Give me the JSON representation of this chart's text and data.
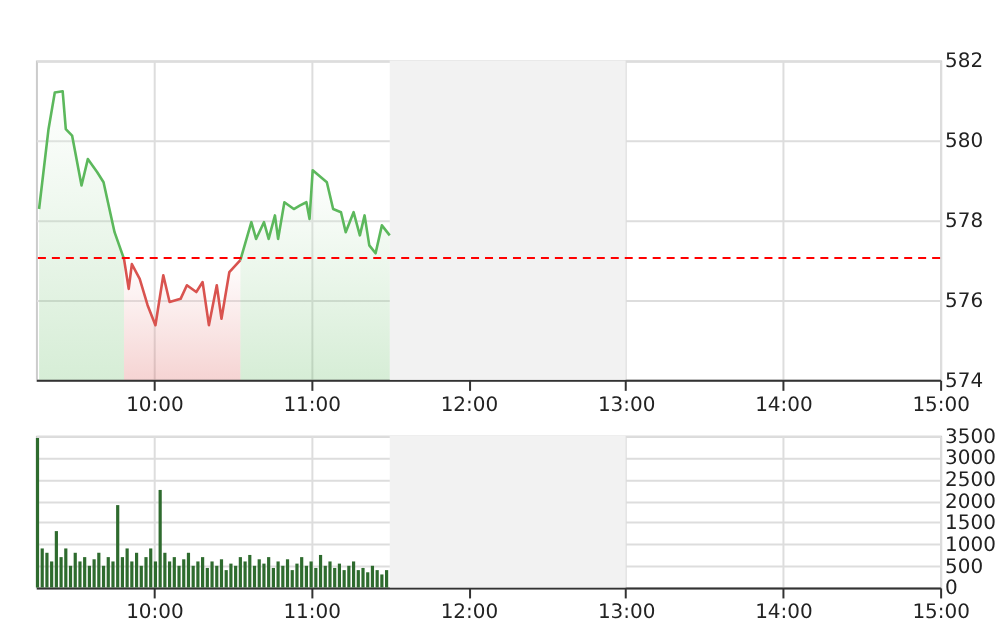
{
  "chart_data": [
    {
      "type": "area",
      "xlim": [
        9.25,
        15
      ],
      "xticks": [
        {
          "value": 10,
          "label": "10:00"
        },
        {
          "value": 11,
          "label": "11:00"
        },
        {
          "value": 12,
          "label": "12:00"
        },
        {
          "value": 13,
          "label": "13:00"
        },
        {
          "value": 14,
          "label": "14:00"
        },
        {
          "value": 15,
          "label": "15:00"
        }
      ],
      "ylim": [
        574,
        582
      ],
      "yticks": [
        574,
        576,
        578,
        580,
        582
      ],
      "grid": true,
      "series": [
        {
          "type": "area",
          "color": "#5cb85c",
          "x": [
            9.27,
            9.33,
            9.37,
            9.42,
            9.44,
            9.48,
            9.54,
            9.58,
            9.64,
            9.68,
            9.75,
            9.81
          ],
          "values": [
            578.28,
            580.28,
            581.2,
            581.23,
            580.28,
            580.12,
            578.87,
            579.53,
            579.2,
            578.95,
            577.7,
            577.03
          ]
        },
        {
          "type": "area",
          "color": "#5cb85c",
          "x": [
            10.55,
            10.62,
            10.65,
            10.7,
            10.73,
            10.77,
            10.79,
            10.83,
            10.89,
            10.93,
            10.97,
            10.99,
            11.01,
            11.1,
            11.14,
            11.19,
            11.22,
            11.27,
            11.31,
            11.34,
            11.37,
            11.41,
            11.45,
            11.5
          ],
          "values": [
            577.0,
            577.95,
            577.53,
            577.95,
            577.53,
            578.12,
            577.53,
            578.45,
            578.28,
            578.37,
            578.45,
            578.03,
            579.25,
            578.95,
            578.28,
            578.2,
            577.7,
            578.2,
            577.62,
            578.12,
            577.37,
            577.17,
            577.87,
            577.62
          ]
        },
        {
          "type": "area",
          "color": "#d9534f",
          "x": [
            9.81,
            9.84,
            9.86,
            9.91,
            9.96,
            10.01,
            10.06,
            10.1,
            10.17,
            10.21,
            10.27,
            10.31,
            10.35,
            10.4,
            10.43,
            10.48,
            10.55
          ],
          "values": [
            577.03,
            576.28,
            576.9,
            576.53,
            575.87,
            575.37,
            576.62,
            575.95,
            576.03,
            576.37,
            576.2,
            576.45,
            575.37,
            576.37,
            575.53,
            576.7,
            577.0
          ]
        }
      ],
      "ref_lines": [
        {
          "axis": "y",
          "value": 577.05,
          "color": "#ff0000",
          "line_style": "dashed"
        }
      ],
      "bands": [
        {
          "axis": "x",
          "from": 11.5,
          "to": 13,
          "color": "#f2f2f2"
        }
      ]
    },
    {
      "type": "bar",
      "xlim": [
        9.25,
        15
      ],
      "xticks": [
        {
          "value": 10,
          "label": "10:00"
        },
        {
          "value": 11,
          "label": "11:00"
        },
        {
          "value": 12,
          "label": "12:00"
        },
        {
          "value": 13,
          "label": "13:00"
        },
        {
          "value": 14,
          "label": "14:00"
        },
        {
          "value": 15,
          "label": "15:00"
        }
      ],
      "ylim": [
        0,
        3500
      ],
      "yticks": [
        0,
        500,
        1000,
        1500,
        2000,
        2500,
        3000,
        3500
      ],
      "grid": true,
      "x": [
        9.26,
        9.29,
        9.32,
        9.35,
        9.38,
        9.41,
        9.44,
        9.47,
        9.5,
        9.53,
        9.56,
        9.59,
        9.62,
        9.65,
        9.68,
        9.71,
        9.74,
        9.77,
        9.8,
        9.83,
        9.86,
        9.89,
        9.92,
        9.95,
        9.98,
        10.01,
        10.04,
        10.07,
        10.1,
        10.13,
        10.16,
        10.19,
        10.22,
        10.25,
        10.28,
        10.31,
        10.34,
        10.37,
        10.4,
        10.43,
        10.46,
        10.49,
        10.52,
        10.55,
        10.58,
        10.61,
        10.64,
        10.67,
        10.7,
        10.73,
        10.76,
        10.79,
        10.82,
        10.85,
        10.88,
        10.91,
        10.94,
        10.97,
        11.0,
        11.03,
        11.06,
        11.09,
        11.12,
        11.15,
        11.18,
        11.21,
        11.24,
        11.27,
        11.3,
        11.33,
        11.36,
        11.39,
        11.42,
        11.45,
        11.48
      ],
      "series": [
        {
          "color": "#2e6b2e",
          "values": [
            3450,
            900,
            800,
            600,
            1300,
            700,
            900,
            500,
            800,
            600,
            700,
            500,
            650,
            800,
            500,
            700,
            600,
            1900,
            700,
            900,
            600,
            800,
            500,
            700,
            900,
            600,
            2250,
            800,
            600,
            700,
            500,
            650,
            800,
            500,
            600,
            700,
            450,
            600,
            500,
            650,
            400,
            550,
            500,
            700,
            600,
            750,
            500,
            650,
            550,
            700,
            450,
            600,
            500,
            650,
            400,
            550,
            700,
            500,
            600,
            450,
            750,
            500,
            600,
            450,
            550,
            400,
            500,
            600,
            400,
            450,
            350,
            500,
            400,
            300,
            400
          ]
        }
      ],
      "bands": [
        {
          "axis": "x",
          "from": 11.5,
          "to": 13,
          "color": "#f2f2f2"
        }
      ]
    }
  ]
}
